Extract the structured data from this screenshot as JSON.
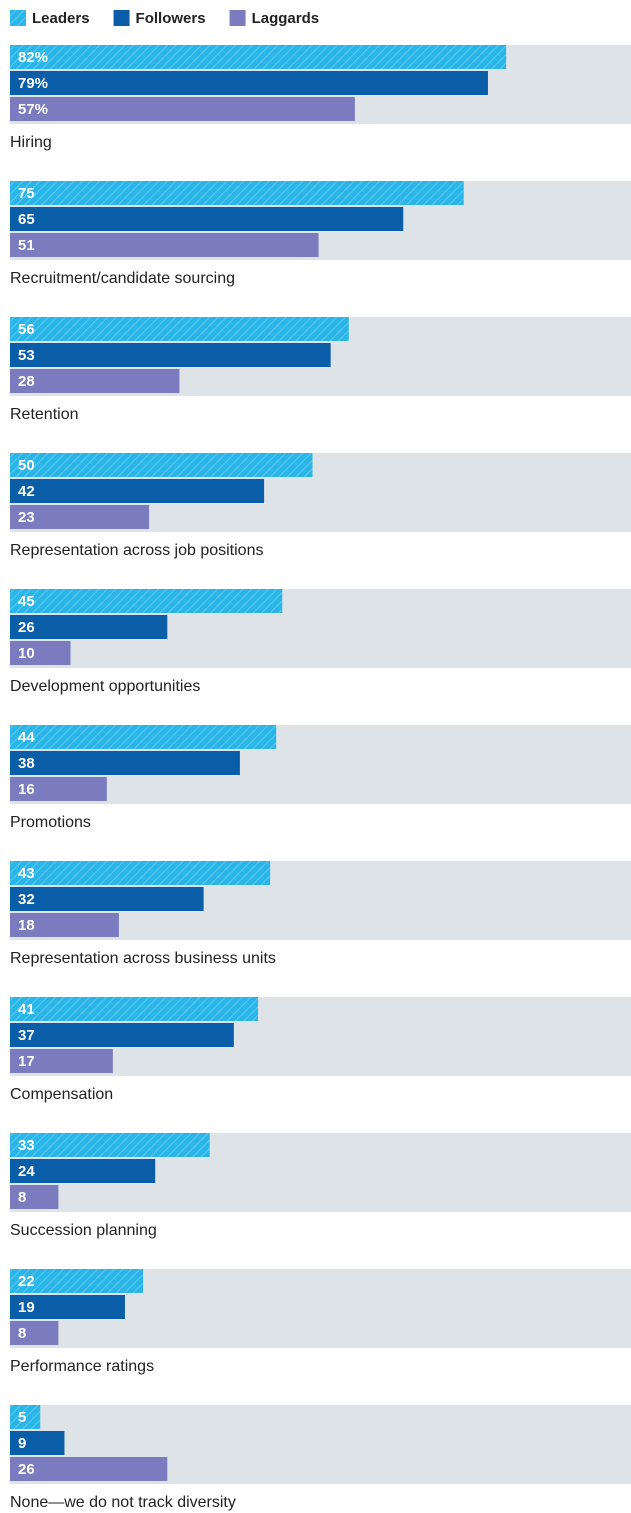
{
  "chart_data": {
    "type": "bar",
    "orientation": "horizontal",
    "categories": [
      "Hiring",
      "Recruitment/candidate sourcing",
      "Retention",
      "Representation across job positions",
      "Development opportunities",
      "Promotions",
      "Representation across business units",
      "Compensation",
      "Succession planning",
      "Performance ratings",
      "None—we do not track diversity"
    ],
    "series": [
      {
        "name": "Leaders",
        "color": "#29b5e8",
        "hatched": true,
        "values": [
          82,
          75,
          56,
          50,
          45,
          44,
          43,
          41,
          33,
          22,
          5
        ],
        "value_labels": [
          "82%",
          "75",
          "56",
          "50",
          "45",
          "44",
          "43",
          "41",
          "33",
          "22",
          "5"
        ]
      },
      {
        "name": "Followers",
        "color": "#0a5ea8",
        "values": [
          79,
          65,
          53,
          42,
          26,
          38,
          32,
          37,
          24,
          19,
          9
        ],
        "value_labels": [
          "79%",
          "65",
          "53",
          "42",
          "26",
          "38",
          "32",
          "37",
          "24",
          "19",
          "9"
        ]
      },
      {
        "name": "Laggards",
        "color": "#7b7bbf",
        "values": [
          57,
          51,
          28,
          23,
          10,
          16,
          18,
          17,
          8,
          8,
          26
        ],
        "value_labels": [
          "57%",
          "51",
          "28",
          "23",
          "10",
          "16",
          "18",
          "17",
          "8",
          "8",
          "26"
        ]
      }
    ],
    "xlim": [
      0,
      100
    ]
  }
}
